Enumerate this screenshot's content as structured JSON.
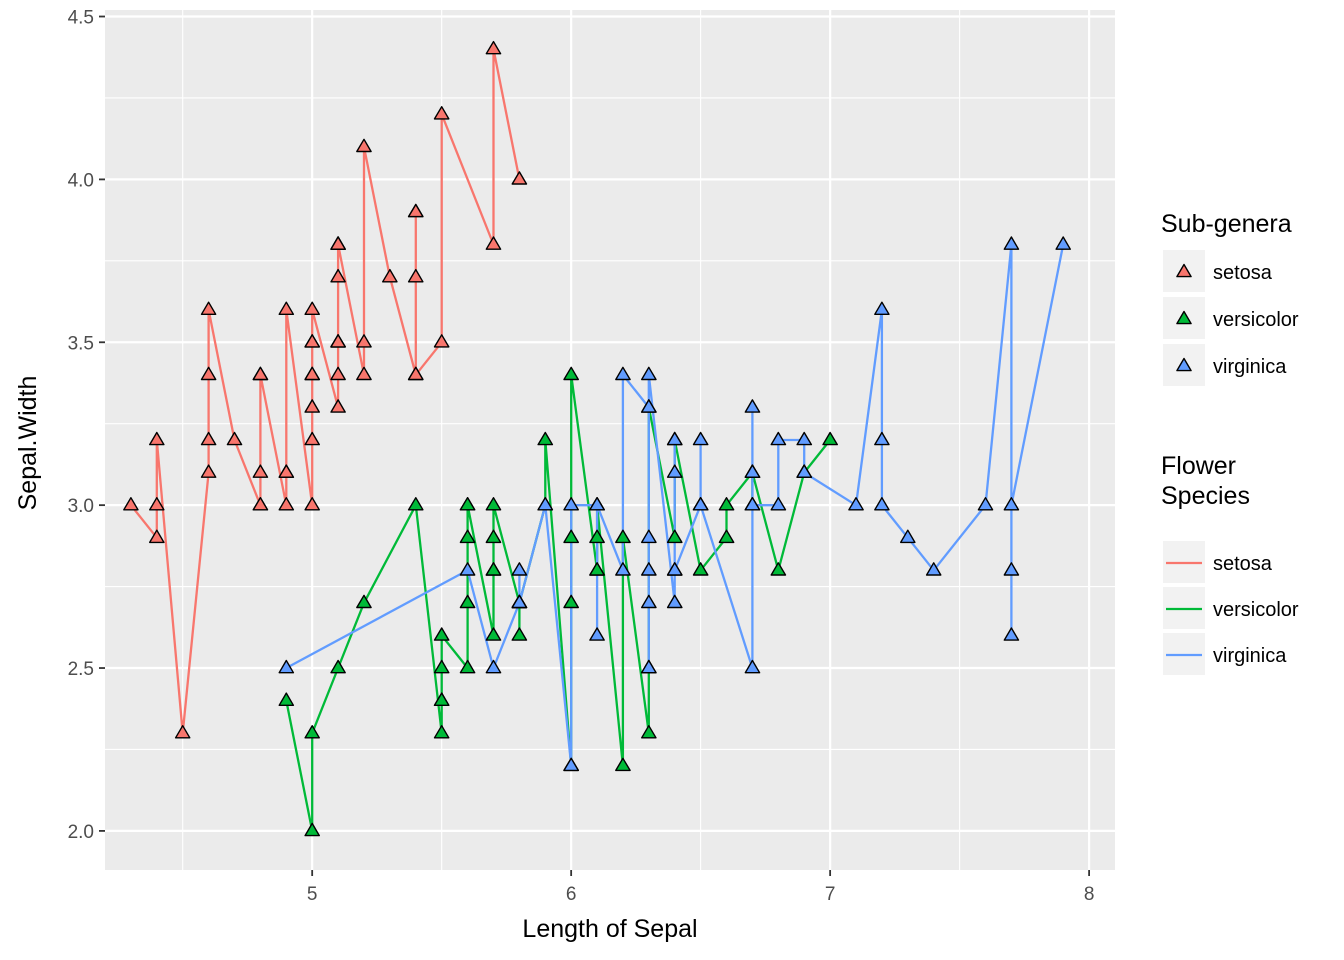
{
  "chart_data": {
    "type": "line",
    "xlabel": "Length of Sepal",
    "ylabel": "Sepal.Width",
    "xlim": [
      4.2,
      8.1
    ],
    "ylim": [
      1.88,
      4.52
    ],
    "x_ticks": [
      5,
      6,
      7,
      8
    ],
    "y_ticks": [
      2.0,
      2.5,
      3.0,
      3.5,
      4.0,
      4.5
    ],
    "x_tick_labels": [
      "5",
      "6",
      "7",
      "8"
    ],
    "y_tick_labels": [
      "2.0",
      "2.5",
      "3.0",
      "3.5",
      "4.0",
      "4.5"
    ],
    "grid": true,
    "legend_position": "right",
    "point_shape": "triangle",
    "panel_background": "#ebebeb",
    "legends": [
      {
        "title": "Sub-genera",
        "kind": "point",
        "labels": [
          "setosa",
          "versicolor",
          "virginica"
        ]
      },
      {
        "title": "Flower\nSpecies",
        "kind": "line",
        "labels": [
          "setosa",
          "versicolor",
          "virginica"
        ]
      }
    ],
    "series": [
      {
        "name": "setosa",
        "color": "#F8766D",
        "x": [
          4.3,
          4.4,
          4.4,
          4.4,
          4.5,
          4.6,
          4.6,
          4.6,
          4.6,
          4.7,
          4.8,
          4.8,
          4.8,
          4.8,
          4.8,
          4.9,
          4.9,
          4.9,
          4.9,
          5.0,
          5.0,
          5.0,
          5.0,
          5.0,
          5.0,
          5.0,
          5.0,
          5.1,
          5.1,
          5.1,
          5.1,
          5.1,
          5.1,
          5.1,
          5.1,
          5.1,
          5.2,
          5.2,
          5.2,
          5.3,
          5.4,
          5.4,
          5.4,
          5.4,
          5.4,
          5.5,
          5.5,
          5.7,
          5.7,
          5.8
        ],
        "y": [
          3.0,
          2.9,
          3.0,
          3.2,
          2.3,
          3.1,
          3.2,
          3.4,
          3.6,
          3.2,
          3.0,
          3.0,
          3.1,
          3.4,
          3.4,
          3.0,
          3.1,
          3.1,
          3.6,
          3.0,
          3.2,
          3.3,
          3.4,
          3.4,
          3.5,
          3.5,
          3.6,
          3.3,
          3.4,
          3.5,
          3.5,
          3.5,
          3.7,
          3.8,
          3.8,
          3.8,
          3.4,
          3.5,
          4.1,
          3.7,
          3.4,
          3.7,
          3.9,
          3.9,
          3.4,
          3.5,
          4.2,
          3.8,
          4.4,
          4.0
        ]
      },
      {
        "name": "versicolor",
        "color": "#00BA38",
        "x": [
          4.9,
          5.0,
          5.0,
          5.1,
          5.2,
          5.4,
          5.5,
          5.5,
          5.5,
          5.5,
          5.5,
          5.6,
          5.6,
          5.6,
          5.6,
          5.6,
          5.7,
          5.7,
          5.7,
          5.7,
          5.7,
          5.8,
          5.8,
          5.8,
          5.9,
          5.9,
          6.0,
          6.0,
          6.0,
          6.0,
          6.1,
          6.1,
          6.1,
          6.1,
          6.2,
          6.2,
          6.3,
          6.3,
          6.3,
          6.4,
          6.4,
          6.5,
          6.6,
          6.6,
          6.7,
          6.7,
          6.7,
          6.8,
          6.9,
          7.0
        ],
        "y": [
          2.4,
          2.0,
          2.3,
          2.5,
          2.7,
          3.0,
          2.3,
          2.4,
          2.4,
          2.5,
          2.6,
          2.5,
          2.7,
          2.9,
          3.0,
          3.0,
          2.6,
          2.8,
          2.9,
          2.8,
          3.0,
          2.7,
          2.6,
          2.7,
          3.0,
          3.2,
          2.2,
          2.9,
          2.7,
          3.4,
          2.8,
          2.9,
          2.8,
          3.0,
          2.2,
          2.9,
          2.3,
          2.5,
          3.3,
          2.9,
          3.2,
          2.8,
          2.9,
          3.0,
          3.1,
          3.0,
          3.1,
          2.8,
          3.1,
          3.2
        ]
      },
      {
        "name": "virginica",
        "color": "#619CFF",
        "x": [
          4.9,
          5.6,
          5.7,
          5.8,
          5.8,
          5.8,
          5.9,
          6.0,
          6.0,
          6.1,
          6.1,
          6.1,
          6.2,
          6.2,
          6.3,
          6.3,
          6.3,
          6.3,
          6.3,
          6.3,
          6.4,
          6.4,
          6.4,
          6.4,
          6.4,
          6.5,
          6.5,
          6.5,
          6.5,
          6.7,
          6.7,
          6.7,
          6.7,
          6.7,
          6.8,
          6.8,
          6.9,
          6.9,
          6.9,
          7.1,
          7.2,
          7.2,
          7.2,
          7.3,
          7.4,
          7.6,
          7.7,
          7.7,
          7.7,
          7.7,
          7.9
        ],
        "y": [
          2.5,
          2.8,
          2.5,
          2.7,
          2.8,
          2.7,
          3.0,
          2.2,
          3.0,
          3.0,
          2.6,
          3.0,
          2.8,
          3.4,
          3.3,
          2.9,
          2.8,
          2.7,
          2.5,
          3.4,
          2.7,
          2.8,
          3.2,
          3.1,
          2.8,
          3.0,
          3.2,
          3.0,
          3.0,
          2.5,
          3.3,
          3.0,
          3.1,
          3.0,
          3.0,
          3.2,
          3.2,
          3.1,
          3.1,
          3.0,
          3.6,
          3.2,
          3.0,
          2.9,
          2.8,
          3.0,
          3.8,
          2.6,
          2.8,
          3.0,
          3.8
        ]
      }
    ]
  }
}
